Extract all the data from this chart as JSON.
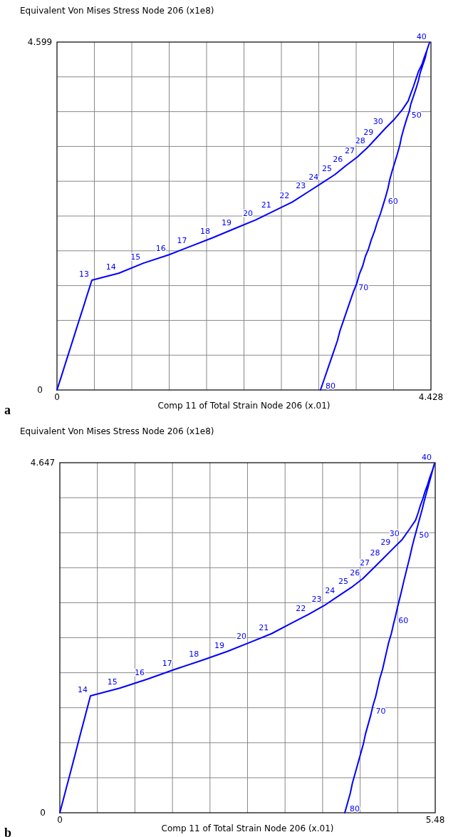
{
  "chart_data": [
    {
      "type": "line",
      "ylabel": "Equivalent Von Mises Stress Node 206 (x1e8)",
      "xlabel": "Comp 11 of Total Strain Node 206 (x.01)",
      "xlim": [
        0,
        4.428
      ],
      "ylim": [
        0,
        4.599
      ],
      "xticks": [
        0,
        {
          "value": 0.4428,
          "label": null
        },
        {
          "value": 0.8856,
          "label": null
        },
        {
          "value": 1.3284,
          "label": null
        },
        {
          "value": 1.7712,
          "label": null
        },
        {
          "value": 2.214,
          "label": null
        },
        {
          "value": 2.6568,
          "label": null
        },
        {
          "value": 3.0996,
          "label": null
        },
        {
          "value": 3.5424,
          "label": null
        },
        {
          "value": 3.9852,
          "label": null
        },
        4.428
      ],
      "yticks": [
        0,
        {
          "value": 0.4599,
          "label": null
        },
        {
          "value": 0.9198,
          "label": null
        },
        {
          "value": 1.3797,
          "label": null
        },
        {
          "value": 1.8396,
          "label": null
        },
        {
          "value": 2.2995,
          "label": null
        },
        {
          "value": 2.7594,
          "label": null
        },
        {
          "value": 3.2193,
          "label": null
        },
        {
          "value": 3.6792,
          "label": null
        },
        {
          "value": 4.1391,
          "label": null
        },
        4.599
      ],
      "grid": true,
      "line_style": "solid",
      "series": [
        {
          "color": "#0000ff",
          "x": [
            0,
            0.032,
            0.064,
            0.095,
            0.127,
            0.159,
            0.191,
            0.222,
            0.254,
            0.286,
            0.318,
            0.349,
            0.381,
            0.413,
            0.731,
            1.023,
            1.322,
            1.574,
            1.848,
            2.101,
            2.354,
            2.57,
            2.786,
            2.979,
            3.131,
            3.289,
            3.419,
            3.559,
            3.683,
            3.781,
            3.894,
            3.999,
            4.087,
            4.158,
            4.19,
            4.22,
            4.25,
            4.28,
            4.32,
            4.35,
            4.38,
            4.41,
            4.38,
            4.36,
            4.33,
            4.3,
            4.28,
            4.25,
            4.22,
            4.19,
            4.17,
            4.14,
            4.11,
            4.08,
            4.06,
            4.03,
            4.0,
            3.97,
            3.94,
            3.92,
            3.89,
            3.86,
            3.83,
            3.79,
            3.76,
            3.72,
            3.69,
            3.65,
            3.62,
            3.58,
            3.55,
            3.51,
            3.47,
            3.43,
            3.39,
            3.35,
            3.32,
            3.28,
            3.24,
            3.2,
            3.16,
            3.12
          ],
          "values": [
            0,
            0.112,
            0.223,
            0.335,
            0.446,
            0.558,
            0.67,
            0.781,
            0.893,
            1.005,
            1.116,
            1.228,
            1.339,
            1.451,
            1.543,
            1.676,
            1.786,
            1.896,
            2.014,
            2.132,
            2.249,
            2.367,
            2.485,
            2.622,
            2.732,
            2.846,
            2.964,
            3.082,
            3.211,
            3.329,
            3.466,
            3.584,
            3.702,
            3.82,
            3.92,
            4.01,
            4.11,
            4.21,
            4.3,
            4.4,
            4.49,
            4.59,
            4.49,
            4.39,
            4.29,
            4.19,
            4.09,
            3.98,
            3.88,
            3.78,
            3.68,
            3.58,
            3.47,
            3.35,
            3.24,
            3.12,
            3.01,
            2.9,
            2.78,
            2.67,
            2.55,
            2.44,
            2.33,
            2.21,
            2.1,
            1.98,
            1.87,
            1.76,
            1.64,
            1.53,
            1.41,
            1.3,
            1.17,
            1.04,
            0.91,
            0.78,
            0.65,
            0.52,
            0.39,
            0.26,
            0.13,
            0
          ]
        }
      ],
      "annotations": [
        "a",
        {
          "text": "13",
          "x": 0.413,
          "y": 1.451
        },
        {
          "text": "14",
          "x": 0.731,
          "y": 1.543
        },
        {
          "text": "15",
          "x": 1.023,
          "y": 1.676
        },
        {
          "text": "16",
          "x": 1.322,
          "y": 1.786
        },
        {
          "text": "17",
          "x": 1.574,
          "y": 1.896
        },
        {
          "text": "18",
          "x": 1.848,
          "y": 2.014
        },
        {
          "text": "19",
          "x": 2.101,
          "y": 2.132
        },
        {
          "text": "20",
          "x": 2.354,
          "y": 2.249
        },
        {
          "text": "21",
          "x": 2.57,
          "y": 2.367
        },
        {
          "text": "22",
          "x": 2.786,
          "y": 2.485
        },
        {
          "text": "23",
          "x": 2.979,
          "y": 2.622
        },
        {
          "text": "24",
          "x": 3.131,
          "y": 2.732
        },
        {
          "text": "25",
          "x": 3.289,
          "y": 2.846
        },
        {
          "text": "26",
          "x": 3.419,
          "y": 2.964
        },
        {
          "text": "27",
          "x": 3.559,
          "y": 3.082
        },
        {
          "text": "28",
          "x": 3.683,
          "y": 3.211
        },
        {
          "text": "29",
          "x": 3.781,
          "y": 3.329
        },
        {
          "text": "30",
          "x": 3.894,
          "y": 3.466
        },
        {
          "text": "40",
          "x": 4.41,
          "y": 4.59
        },
        {
          "text": "50",
          "x": 4.14,
          "y": 3.58
        },
        {
          "text": "60",
          "x": 3.86,
          "y": 2.44
        },
        {
          "text": "70",
          "x": 3.51,
          "y": 1.3
        },
        {
          "text": "80",
          "x": 3.12,
          "y": 0
        }
      ]
    },
    {
      "type": "line",
      "ylabel": "Equivalent Von Mises Stress Node 206 (x1e8)",
      "xlabel": "Comp 11 of Total Strain Node 206 (x.01)",
      "xlim": [
        0,
        5.48
      ],
      "ylim": [
        0,
        4.647
      ],
      "xticks": [
        0,
        {
          "value": 0.548,
          "label": null
        },
        {
          "value": 1.096,
          "label": null
        },
        {
          "value": 1.644,
          "label": null
        },
        {
          "value": 2.192,
          "label": null
        },
        {
          "value": 2.74,
          "label": null
        },
        {
          "value": 3.288,
          "label": null
        },
        {
          "value": 3.836,
          "label": null
        },
        {
          "value": 4.384,
          "label": null
        },
        {
          "value": 4.932,
          "label": null
        },
        5.48
      ],
      "yticks": [
        0,
        {
          "value": 0.4647,
          "label": null
        },
        {
          "value": 0.9294,
          "label": null
        },
        {
          "value": 1.3941,
          "label": null
        },
        {
          "value": 1.8588,
          "label": null
        },
        {
          "value": 2.3235,
          "label": null
        },
        {
          "value": 2.7882,
          "label": null
        },
        {
          "value": 3.2529,
          "label": null
        },
        {
          "value": 3.7176,
          "label": null
        },
        {
          "value": 4.1823,
          "label": null
        },
        4.647
      ],
      "grid": true,
      "line_style": "solid",
      "series": [
        {
          "color": "#0000ff",
          "x": [
            0,
            0.032,
            0.064,
            0.096,
            0.128,
            0.16,
            0.192,
            0.224,
            0.255,
            0.287,
            0.319,
            0.351,
            0.383,
            0.415,
            0.447,
            0.882,
            1.28,
            1.682,
            2.073,
            2.443,
            2.766,
            3.091,
            3.36,
            3.632,
            3.862,
            4.057,
            4.252,
            4.421,
            4.564,
            4.716,
            4.868,
            4.998,
            5.106,
            5.193,
            5.23,
            5.26,
            5.3,
            5.33,
            5.37,
            5.4,
            5.44,
            5.47,
            5.44,
            5.41,
            5.38,
            5.35,
            5.32,
            5.29,
            5.26,
            5.23,
            5.2,
            5.17,
            5.14,
            5.11,
            5.08,
            5.05,
            5.02,
            4.99,
            4.96,
            4.93,
            4.9,
            4.87,
            4.84,
            4.8,
            4.77,
            4.74,
            4.71,
            4.67,
            4.64,
            4.61,
            4.57,
            4.54,
            4.5,
            4.46,
            4.43,
            4.39,
            4.35,
            4.31,
            4.27,
            4.24,
            4.2,
            4.16
          ],
          "values": [
            0,
            0.111,
            0.222,
            0.333,
            0.443,
            0.554,
            0.665,
            0.776,
            0.887,
            0.998,
            1.109,
            1.219,
            1.33,
            1.441,
            1.552,
            1.656,
            1.775,
            1.905,
            2.023,
            2.141,
            2.259,
            2.378,
            2.506,
            2.634,
            2.752,
            2.871,
            2.989,
            3.107,
            3.234,
            3.372,
            3.51,
            3.628,
            3.767,
            3.884,
            3.98,
            4.07,
            4.17,
            4.26,
            4.36,
            4.45,
            4.55,
            4.64,
            4.54,
            4.44,
            4.34,
            4.24,
            4.14,
            4.03,
            3.93,
            3.83,
            3.73,
            3.63,
            3.52,
            3.4,
            3.29,
            3.18,
            3.07,
            2.95,
            2.84,
            2.73,
            2.61,
            2.5,
            2.38,
            2.26,
            2.14,
            2.02,
            1.9,
            1.78,
            1.66,
            1.54,
            1.42,
            1.3,
            1.17,
            1.04,
            0.91,
            0.78,
            0.65,
            0.52,
            0.39,
            0.26,
            0.13,
            0
          ]
        }
      ],
      "annotations": [
        "b",
        {
          "text": "14",
          "x": 0.447,
          "y": 1.552
        },
        {
          "text": "15",
          "x": 0.882,
          "y": 1.656
        },
        {
          "text": "16",
          "x": 1.28,
          "y": 1.775
        },
        {
          "text": "17",
          "x": 1.682,
          "y": 1.905
        },
        {
          "text": "18",
          "x": 2.073,
          "y": 2.023
        },
        {
          "text": "19",
          "x": 2.443,
          "y": 2.141
        },
        {
          "text": "20",
          "x": 2.766,
          "y": 2.259
        },
        {
          "text": "21",
          "x": 3.091,
          "y": 2.378
        },
        {
          "text": "22",
          "x": 3.632,
          "y": 2.634
        },
        {
          "text": "23",
          "x": 3.862,
          "y": 2.752
        },
        {
          "text": "24",
          "x": 4.057,
          "y": 2.871
        },
        {
          "text": "25",
          "x": 4.252,
          "y": 2.989
        },
        {
          "text": "26",
          "x": 4.421,
          "y": 3.107
        },
        {
          "text": "27",
          "x": 4.564,
          "y": 3.234
        },
        {
          "text": "28",
          "x": 4.716,
          "y": 3.372
        },
        {
          "text": "29",
          "x": 4.868,
          "y": 3.51
        },
        {
          "text": "30",
          "x": 4.998,
          "y": 3.628
        },
        {
          "text": "40",
          "x": 5.47,
          "y": 4.64
        },
        {
          "text": "50",
          "x": 5.17,
          "y": 3.63
        },
        {
          "text": "60",
          "x": 4.87,
          "y": 2.5
        },
        {
          "text": "70",
          "x": 4.54,
          "y": 1.3
        },
        {
          "text": "80",
          "x": 4.16,
          "y": 0
        }
      ]
    }
  ]
}
